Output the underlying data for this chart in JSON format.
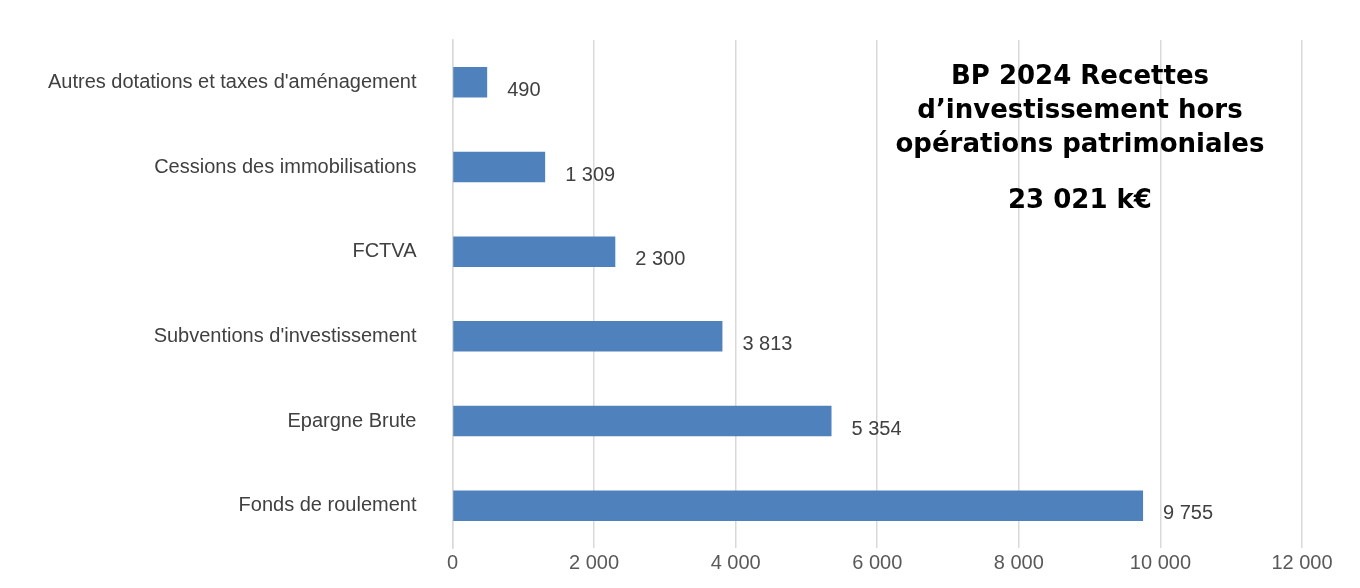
{
  "chart_data": {
    "type": "bar",
    "orientation": "horizontal",
    "title": "BP 2024 Recettes d’investissement hors opérations patrimoniales",
    "subtitle": "23 021 k€",
    "categories": [
      "Autres dotations et taxes d'aménagement",
      "Cessions des immobilisations",
      "FCTVA",
      "Subventions d'investissement",
      "Epargne Brute",
      "Fonds de roulement"
    ],
    "values": [
      490,
      1309,
      2300,
      3813,
      5354,
      9755
    ],
    "value_labels": [
      "490",
      "1 309",
      "2 300",
      "3 813",
      "5 354",
      "9 755"
    ],
    "color": "#4f81bd",
    "xlim": [
      0,
      12000
    ],
    "xticks": [
      0,
      {
        "value": 2000,
        "label": "2 000"
      },
      {
        "value": 4000,
        "label": "4 000"
      },
      {
        "value": 6000,
        "label": "6 000"
      },
      {
        "value": 8000,
        "label": "8 000"
      },
      {
        "value": 10000,
        "label": "10 000"
      },
      {
        "value": 12000,
        "label": "12 000"
      }
    ],
    "grid": "x"
  }
}
